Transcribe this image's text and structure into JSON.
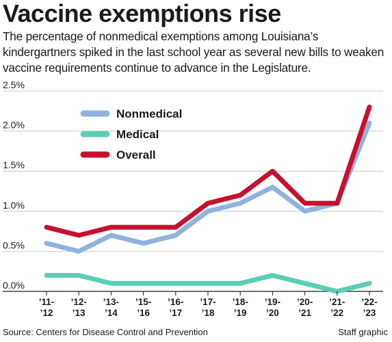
{
  "title": "Vaccine exemptions rise",
  "subtitle": "The percentage of nonmedical exemptions among Louisiana’s kindergartners spiked in the last school year as several new bills to weaken vaccine requirements continue to advance in the Legislature.",
  "source": "Source: Centers for Disease Control and Prevention",
  "credit": "Staff graphic",
  "chart_data": {
    "type": "line",
    "title": "",
    "xlabel": "",
    "ylabel": "",
    "categories": [
      [
        "’11-",
        "’12"
      ],
      [
        "’12-",
        "’13"
      ],
      [
        "’13-",
        "’14"
      ],
      [
        "’15-",
        "’16"
      ],
      [
        "’16-",
        "’17"
      ],
      [
        "’17-",
        "’18"
      ],
      [
        "’18-",
        "’19"
      ],
      [
        "’19-",
        "’20"
      ],
      [
        "’20-",
        "’21"
      ],
      [
        "’21-",
        "’22"
      ],
      [
        "’22-",
        "’23"
      ]
    ],
    "ylim": [
      0,
      2.5
    ],
    "yticks": [
      {
        "value": 0,
        "label": "0.0%"
      },
      {
        "value": 0.5,
        "label": "0.5%"
      },
      {
        "value": 1.0,
        "label": "1.0%"
      },
      {
        "value": 1.5,
        "label": "1.5%"
      },
      {
        "value": 2.0,
        "label": "2.0%"
      },
      {
        "value": 2.5,
        "label": "2.5%"
      }
    ],
    "grid": true,
    "legend_position": "top-left",
    "series": [
      {
        "name": "Nonmedical",
        "color": "#8fb3de",
        "values": [
          0.6,
          0.5,
          0.7,
          0.6,
          0.7,
          1.0,
          1.1,
          1.3,
          1.0,
          1.1,
          2.1
        ]
      },
      {
        "name": "Medical",
        "color": "#5ccdb6",
        "values": [
          0.2,
          0.2,
          0.1,
          0.1,
          0.1,
          0.1,
          0.1,
          0.2,
          0.1,
          0.0,
          0.1
        ]
      },
      {
        "name": "Overall",
        "color": "#c8102e",
        "values": [
          0.8,
          0.7,
          0.8,
          0.8,
          0.8,
          1.1,
          1.2,
          1.5,
          1.1,
          1.1,
          2.3
        ]
      }
    ]
  }
}
